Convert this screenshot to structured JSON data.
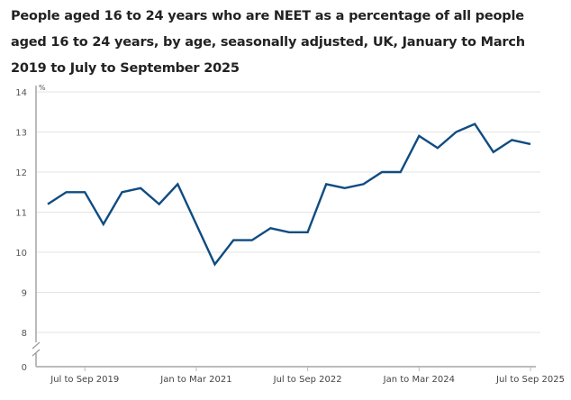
{
  "chart_data": {
    "type": "line",
    "title": "People aged 16 to 24 years who are NEET as a percentage of all people aged 16 to 24 years, by age, seasonally adjusted, UK, January to March 2019 to July to September 2025",
    "ylabel": "%",
    "xlabel": "",
    "ylim": [
      8,
      14
    ],
    "yticks": [
      "0",
      "8",
      "9",
      "10",
      "11",
      "12",
      "13",
      "14"
    ],
    "axis_break": true,
    "grid": true,
    "x_tick_labels": [
      {
        "index": 2,
        "label": "Jul to Sep 2019"
      },
      {
        "index": 8,
        "label": "Jan to Mar 2021"
      },
      {
        "index": 14,
        "label": "Jul to Sep 2022"
      },
      {
        "index": 20,
        "label": "Jan to Mar 2024"
      },
      {
        "index": 26,
        "label": "Jul to Sep 2025"
      }
    ],
    "color": "#0f4c81",
    "series": [
      {
        "values": [
          11.2,
          11.5,
          11.5,
          10.7,
          11.5,
          11.6,
          11.2,
          11.7,
          10.7,
          9.7,
          10.3,
          10.3,
          10.6,
          10.5,
          10.5,
          11.7,
          11.6,
          11.7,
          12.0,
          12.0,
          12.9,
          12.6,
          13.0,
          13.2,
          12.5,
          12.8,
          12.7
        ]
      }
    ]
  }
}
